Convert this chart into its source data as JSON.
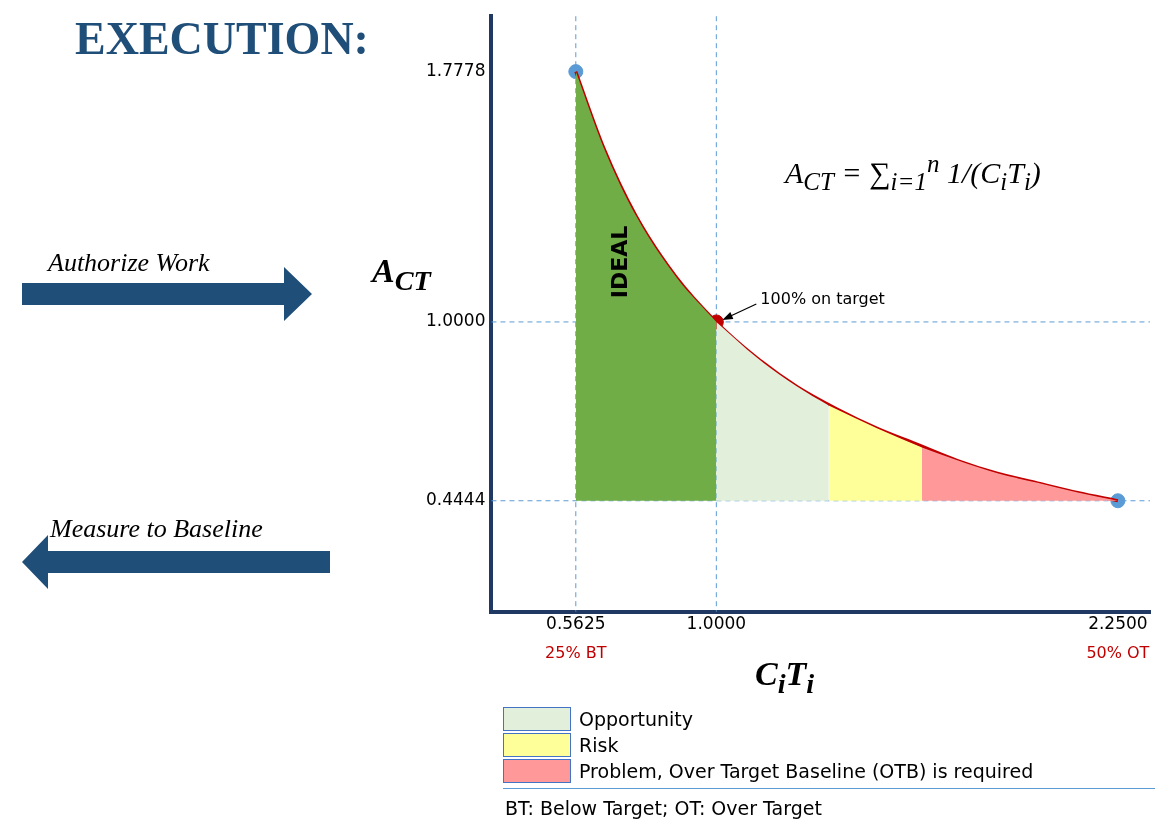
{
  "chart_data": {
    "type": "area",
    "title": "EXECUTION:",
    "xlabel": "C$_{i}$T$_{i}$",
    "ylabel": "A$_{CT}$",
    "xlim": [
      0.3,
      2.35
    ],
    "ylim": [
      0.1,
      1.95
    ],
    "xticks": [
      {
        "value": 0.5625,
        "label": "0.5625"
      },
      {
        "value": 1,
        "label": "1.0000"
      },
      {
        "value": 2.25,
        "label": "2.2500"
      }
    ],
    "yticks": [
      {
        "value": 0.4444,
        "label": "0.4444"
      },
      {
        "value": 1,
        "label": "1.0000"
      },
      {
        "value": 1.7778,
        "label": "1.7778"
      }
    ],
    "grid": false,
    "legend": "bottom",
    "marker": "none",
    "series": [
      {
        "color": "#70ad47",
        "x": [
          0.5625,
          0.65,
          0.75,
          0.875,
          1
        ],
        "values": [
          1.7778,
          1.54,
          1.33,
          1.14,
          1
        ]
      },
      {
        "name": "Opportunity",
        "color": "#e2efda",
        "x": [
          1,
          1.125,
          1.25,
          1.35
        ],
        "values": [
          1,
          0.89,
          0.8,
          0.74
        ]
      },
      {
        "name": "Risk",
        "color": "#ffff99",
        "x": [
          1.35,
          1.5,
          1.64
        ],
        "values": [
          0.74,
          0.67,
          0.61
        ]
      },
      {
        "name": "Problem, Over Target Baseline (OTB) is required",
        "color": "#ff9999",
        "x": [
          1.64,
          1.75,
          1.875,
          2,
          2.125,
          2.25
        ],
        "values": [
          0.61,
          0.57,
          0.53,
          0.5,
          0.47,
          0.4444
        ]
      },
      {
        "type": "line",
        "color": "#c00000",
        "x": [
          0.5625,
          0.65,
          0.75,
          0.875,
          1,
          1.125,
          1.25,
          1.375,
          1.5,
          1.625,
          1.75,
          1.875,
          2,
          2.125,
          2.25
        ],
        "values": [
          1.7778,
          1.54,
          1.33,
          1.14,
          1,
          0.89,
          0.8,
          0.73,
          0.67,
          0.62,
          0.57,
          0.53,
          0.5,
          0.47,
          0.4444
        ]
      },
      {
        "type": "scatter",
        "color": "#5b9bd5",
        "marker": "circle",
        "x": [
          0.5625,
          2.25
        ],
        "values": [
          1.7778,
          0.4444
        ]
      },
      {
        "type": "scatter",
        "color": "#c00000",
        "marker": "circle",
        "x": [
          1
        ],
        "values": [
          1
        ]
      }
    ],
    "ref_lines": [
      {
        "axis": "x",
        "value": 0.5625,
        "color": "#5b9bd5",
        "line_style": "dashed"
      },
      {
        "axis": "x",
        "value": 1,
        "color": "#5b9bd5",
        "line_style": "dashed"
      },
      {
        "axis": "y",
        "value": 1,
        "color": "#5b9bd5",
        "line_style": "dashed"
      },
      {
        "axis": "y",
        "value": 0.4444,
        "color": "#5b9bd5",
        "line_style": "dashed"
      }
    ],
    "annotations": [
      "IDEAL",
      {
        "text": "100% on target",
        "x": 1,
        "y": 1
      },
      "25% BT",
      "50% OT",
      "A$_{CT}$ = ∑$_{i=1}$$^{n}$ 1/(C$_{i}$T$_{i}$)",
      "Authorize Work",
      "Measure to Baseline",
      "BT: Below Target; OT: Over Target"
    ]
  }
}
